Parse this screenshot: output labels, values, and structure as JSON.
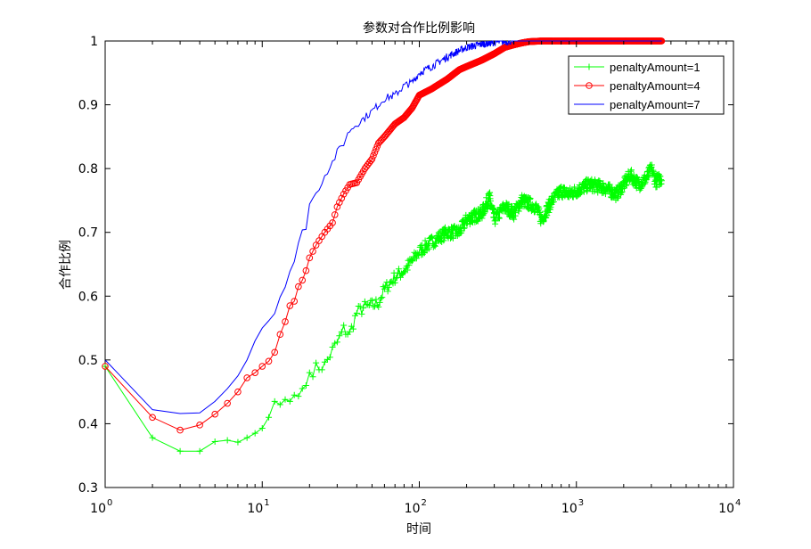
{
  "chart_data": {
    "type": "line",
    "title": "参数对合作比例影响",
    "xlabel": "时间",
    "ylabel": "合作比例",
    "xscale": "log",
    "xlim": [
      1,
      10000
    ],
    "ylim": [
      0.3,
      1.0
    ],
    "x_ticks": [
      {
        "value": 1,
        "base": "10",
        "exp": "0"
      },
      {
        "value": 10,
        "base": "10",
        "exp": "1"
      },
      {
        "value": 100,
        "base": "10",
        "exp": "2"
      },
      {
        "value": 1000,
        "base": "10",
        "exp": "3"
      },
      {
        "value": 10000,
        "base": "10",
        "exp": "4"
      }
    ],
    "y_ticks": [
      {
        "value": 0.3,
        "label": "0.3"
      },
      {
        "value": 0.4,
        "label": "0.4"
      },
      {
        "value": 0.5,
        "label": "0.5"
      },
      {
        "value": 0.6,
        "label": "0.6"
      },
      {
        "value": 0.7,
        "label": "0.7"
      },
      {
        "value": 0.8,
        "label": "0.8"
      },
      {
        "value": 0.9,
        "label": "0.9"
      },
      {
        "value": 1.0,
        "label": "1"
      }
    ],
    "grid": false,
    "legend_position": "top-right",
    "x_end": 3500,
    "series": [
      {
        "name": "penaltyAmount=1",
        "color": "#00ff00",
        "marker": "plus",
        "x": [
          1,
          2,
          3,
          4,
          5,
          6,
          7,
          8,
          9,
          10,
          11,
          12,
          13,
          14,
          15,
          16,
          17,
          18,
          19,
          20,
          22,
          25,
          28,
          30,
          33,
          36,
          40,
          45,
          50,
          55,
          60,
          70,
          80,
          90,
          100,
          120,
          150,
          180,
          200,
          250,
          280,
          300,
          350,
          400,
          450,
          500,
          550,
          600,
          700,
          800,
          900,
          1000,
          1200,
          1500,
          1800,
          2000,
          2200,
          2500,
          2800,
          3000,
          3200,
          3500
        ],
        "y": [
          0.49,
          0.378,
          0.357,
          0.357,
          0.372,
          0.374,
          0.371,
          0.378,
          0.385,
          0.393,
          0.41,
          0.435,
          0.43,
          0.438,
          0.435,
          0.445,
          0.443,
          0.455,
          0.46,
          0.48,
          0.487,
          0.492,
          0.515,
          0.527,
          0.548,
          0.54,
          0.574,
          0.583,
          0.585,
          0.59,
          0.61,
          0.63,
          0.64,
          0.655,
          0.67,
          0.685,
          0.7,
          0.7,
          0.72,
          0.73,
          0.755,
          0.72,
          0.74,
          0.73,
          0.75,
          0.745,
          0.74,
          0.72,
          0.75,
          0.765,
          0.76,
          0.765,
          0.775,
          0.77,
          0.76,
          0.775,
          0.79,
          0.775,
          0.785,
          0.8,
          0.78,
          0.785
        ]
      },
      {
        "name": "penaltyAmount=4",
        "color": "#ff0000",
        "marker": "circle",
        "x": [
          1,
          2,
          3,
          4,
          5,
          6,
          7,
          8,
          9,
          10,
          11,
          12,
          13,
          14,
          15,
          16,
          17,
          18,
          19,
          20,
          22,
          25,
          28,
          30,
          33,
          36,
          40,
          45,
          50,
          55,
          60,
          70,
          80,
          90,
          100,
          120,
          150,
          180,
          200,
          250,
          300,
          350,
          400,
          450,
          500,
          600,
          700,
          800,
          1000,
          1500,
          2000,
          2500,
          3000,
          3500
        ],
        "y": [
          0.49,
          0.41,
          0.39,
          0.398,
          0.415,
          0.432,
          0.45,
          0.472,
          0.48,
          0.49,
          0.498,
          0.512,
          0.54,
          0.56,
          0.585,
          0.592,
          0.615,
          0.625,
          0.64,
          0.66,
          0.68,
          0.7,
          0.715,
          0.74,
          0.76,
          0.775,
          0.778,
          0.8,
          0.815,
          0.84,
          0.85,
          0.87,
          0.88,
          0.895,
          0.915,
          0.925,
          0.94,
          0.955,
          0.96,
          0.97,
          0.98,
          0.99,
          0.994,
          0.997,
          0.999,
          1.0,
          1.0,
          1.0,
          1.0,
          1.0,
          1.0,
          1.0,
          1.0,
          1.0
        ]
      },
      {
        "name": "penaltyAmount=7",
        "color": "#0000ff",
        "marker": "none",
        "x": [
          1,
          2,
          3,
          4,
          5,
          6,
          7,
          8,
          9,
          10,
          11,
          12,
          13,
          14,
          15,
          16,
          17,
          18,
          19,
          20,
          22,
          25,
          28,
          30,
          33,
          36,
          40,
          45,
          50,
          55,
          60,
          70,
          80,
          90,
          100,
          120,
          150,
          180,
          200,
          250,
          300,
          350,
          400,
          450,
          500,
          600,
          700,
          800,
          1000,
          1500,
          2000,
          2500,
          3000,
          3500
        ],
        "y": [
          0.5,
          0.422,
          0.416,
          0.417,
          0.435,
          0.455,
          0.475,
          0.5,
          0.53,
          0.55,
          0.563,
          0.575,
          0.6,
          0.62,
          0.64,
          0.655,
          0.68,
          0.7,
          0.71,
          0.745,
          0.76,
          0.79,
          0.81,
          0.825,
          0.84,
          0.86,
          0.87,
          0.88,
          0.89,
          0.9,
          0.91,
          0.915,
          0.93,
          0.935,
          0.95,
          0.96,
          0.975,
          0.985,
          0.99,
          0.995,
          0.998,
          0.999,
          1.0,
          1.0,
          1.0,
          1.0,
          1.0,
          1.0,
          1.0,
          1.0,
          1.0,
          1.0,
          1.0,
          1.0
        ]
      }
    ]
  }
}
